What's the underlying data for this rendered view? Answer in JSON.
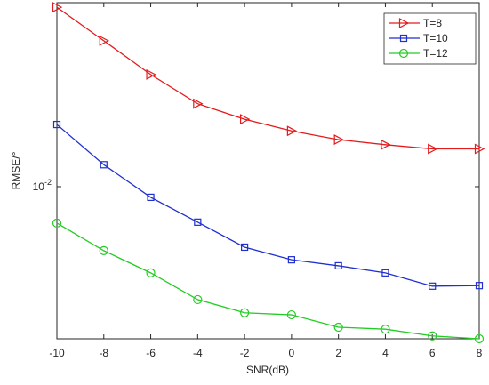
{
  "chart_data": {
    "type": "line",
    "xlabel": "SNR(dB)",
    "ylabel": "RMSE/°",
    "x": [
      -10,
      -8,
      -6,
      -4,
      -2,
      0,
      2,
      4,
      6,
      8
    ],
    "xlim": [
      -10,
      8
    ],
    "xticks": [
      -10,
      -8,
      -6,
      -4,
      -2,
      0,
      2,
      4,
      6,
      8
    ],
    "ylim": [
      0.00337,
      0.0373
    ],
    "yscale": "log",
    "yticks": [
      {
        "value": 0.01,
        "label": "10^-2"
      }
    ],
    "legend": "upper right",
    "series": [
      {
        "name": "T=8",
        "color": "#e41a1c",
        "marker": "triangle-right",
        "values": [
          0.0361,
          0.0284,
          0.0223,
          0.0181,
          0.0162,
          0.0149,
          0.014,
          0.0135,
          0.0131,
          0.0131
        ]
      },
      {
        "name": "T=10",
        "color": "#1f2fd0",
        "marker": "square",
        "values": [
          0.0156,
          0.0117,
          0.00927,
          0.00776,
          0.00649,
          0.00593,
          0.00568,
          0.0054,
          0.00491,
          0.00493
        ]
      },
      {
        "name": "T=12",
        "color": "#22cc22",
        "marker": "circle",
        "values": [
          0.00771,
          0.00633,
          0.0054,
          0.00446,
          0.00406,
          0.004,
          0.00366,
          0.00361,
          0.00344,
          0.00337
        ]
      }
    ]
  }
}
